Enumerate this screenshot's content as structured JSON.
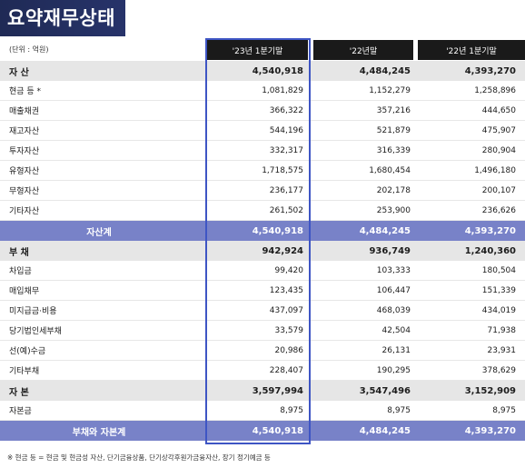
{
  "title": "요약재무상태",
  "unit": "(단위 : 억원)",
  "columns": [
    "'23년 1분기말",
    "'22년말",
    "'22년 1분기말"
  ],
  "rows": [
    {
      "type": "section",
      "label": "자 산",
      "values": [
        "4,540,918",
        "4,484,245",
        "4,393,270"
      ]
    },
    {
      "type": "item",
      "label": "현금 등 *",
      "values": [
        "1,081,829",
        "1,152,279",
        "1,258,896"
      ]
    },
    {
      "type": "item",
      "label": "매출채권",
      "values": [
        "366,322",
        "357,216",
        "444,650"
      ]
    },
    {
      "type": "item",
      "label": "재고자산",
      "values": [
        "544,196",
        "521,879",
        "475,907"
      ]
    },
    {
      "type": "item",
      "label": "투자자산",
      "values": [
        "332,317",
        "316,339",
        "280,904"
      ]
    },
    {
      "type": "item",
      "label": "유형자산",
      "values": [
        "1,718,575",
        "1,680,454",
        "1,496,180"
      ]
    },
    {
      "type": "item",
      "label": "무형자산",
      "values": [
        "236,177",
        "202,178",
        "200,107"
      ]
    },
    {
      "type": "item",
      "label": "기타자산",
      "values": [
        "261,502",
        "253,900",
        "236,626"
      ]
    },
    {
      "type": "total",
      "label": "자산계",
      "values": [
        "4,540,918",
        "4,484,245",
        "4,393,270"
      ]
    },
    {
      "type": "section",
      "label": "부 채",
      "values": [
        "942,924",
        "936,749",
        "1,240,360"
      ]
    },
    {
      "type": "item",
      "label": "차입금",
      "values": [
        "99,420",
        "103,333",
        "180,504"
      ]
    },
    {
      "type": "item",
      "label": "매입채무",
      "values": [
        "123,435",
        "106,447",
        "151,339"
      ]
    },
    {
      "type": "item",
      "label": "미지급금·비용",
      "values": [
        "437,097",
        "468,039",
        "434,019"
      ]
    },
    {
      "type": "item",
      "label": "당기법인세부채",
      "values": [
        "33,579",
        "42,504",
        "71,938"
      ]
    },
    {
      "type": "item",
      "label": "선(예)수금",
      "values": [
        "20,986",
        "26,131",
        "23,931"
      ]
    },
    {
      "type": "item",
      "label": "기타부채",
      "values": [
        "228,407",
        "190,295",
        "378,629"
      ]
    },
    {
      "type": "section",
      "label": "자 본",
      "values": [
        "3,597,994",
        "3,547,496",
        "3,152,909"
      ]
    },
    {
      "type": "item",
      "label": "자본금",
      "values": [
        "8,975",
        "8,975",
        "8,975"
      ]
    },
    {
      "type": "total",
      "label": "부채와 자본계",
      "values": [
        "4,540,918",
        "4,484,245",
        "4,393,270"
      ]
    }
  ],
  "footnote": "※ 현금 등 = 현금 및 현금성 자산, 단기금융상품, 단기상각후원가금융자산, 장기 정기예금 등",
  "colors": {
    "title_bg": "#1f2a55",
    "header_bg": "#1a1a1a",
    "section_bg": "#e6e6e6",
    "total_bg": "#7882c8",
    "highlight": "#3e55c4"
  }
}
